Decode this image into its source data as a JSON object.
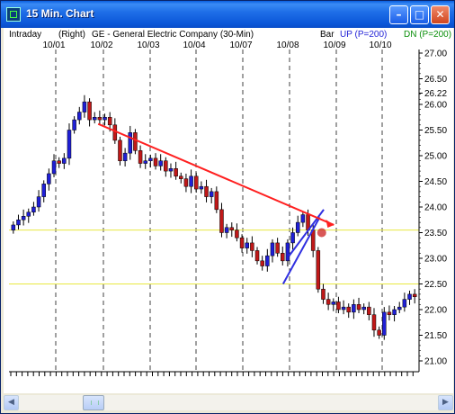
{
  "window": {
    "title": "15 Min. Chart",
    "minimize_glyph": "–",
    "maximize_glyph": "□",
    "close_glyph": "✕"
  },
  "header": {
    "interval": "Intraday",
    "axis_side": "(Right)",
    "symbol_desc": "GE - General Electric Company (30-Min)",
    "style": "Bar",
    "up_label": "UP (P=200)",
    "dn_label": "DN (P=200)"
  },
  "scrollbar": {
    "left_arrow": "◀",
    "right_arrow": "▶"
  },
  "colors": {
    "up": "#1f1fd6",
    "down": "#c01818",
    "trend": "#ff2020",
    "channel": "#3030e0",
    "support": "#e8e840",
    "grid": "#404040"
  },
  "chart_data": {
    "type": "candlestick",
    "ylim": [
      21.0,
      27.0
    ],
    "x_tick_labels": [
      "10/01",
      "10/02",
      "10/03",
      "10/04",
      "10/07",
      "10/08",
      "10/09",
      "10/10"
    ],
    "y_tick_labels": [
      "27.00",
      "26.50",
      "26.22",
      "26.00",
      "25.50",
      "25.00",
      "24.50",
      "24.00",
      "23.50",
      "23.00",
      "22.50",
      "22.00",
      "21.50",
      "21.00"
    ],
    "y_tick_values": [
      27.0,
      26.5,
      26.22,
      26.0,
      25.5,
      25.0,
      24.5,
      24.0,
      23.5,
      23.0,
      22.5,
      22.0,
      21.5,
      21.0
    ],
    "horizontal_lines": [
      23.55,
      22.5
    ],
    "trend_line": {
      "from": [
        0.215,
        25.62
      ],
      "to": [
        0.795,
        23.65
      ]
    },
    "channel": {
      "lower": [
        [
          0.67,
          22.5
        ],
        [
          0.76,
          23.8
        ]
      ],
      "upper": [
        [
          0.685,
          23.05
        ],
        [
          0.77,
          23.95
        ]
      ]
    },
    "closes": [
      23.65,
      23.75,
      23.82,
      23.9,
      24.0,
      24.2,
      24.45,
      24.65,
      24.9,
      24.85,
      24.95,
      25.5,
      25.7,
      25.85,
      26.05,
      25.7,
      25.75,
      25.7,
      25.75,
      25.6,
      25.3,
      24.9,
      25.05,
      25.45,
      25.1,
      24.85,
      24.9,
      24.95,
      24.8,
      24.9,
      24.7,
      24.75,
      24.6,
      24.55,
      24.4,
      24.6,
      24.35,
      24.4,
      24.2,
      24.3,
      23.95,
      23.5,
      23.6,
      23.55,
      23.4,
      23.2,
      23.3,
      23.15,
      22.95,
      22.85,
      23.05,
      23.3,
      23.1,
      22.95,
      23.3,
      23.5,
      23.7,
      23.85,
      23.55,
      23.15,
      22.4,
      22.2,
      22.1,
      22.15,
      22.0,
      22.05,
      21.95,
      22.1,
      22.0,
      22.05,
      21.9,
      21.6,
      21.5,
      21.95,
      21.9,
      22.0,
      22.05,
      22.2,
      22.3,
      22.25
    ]
  }
}
